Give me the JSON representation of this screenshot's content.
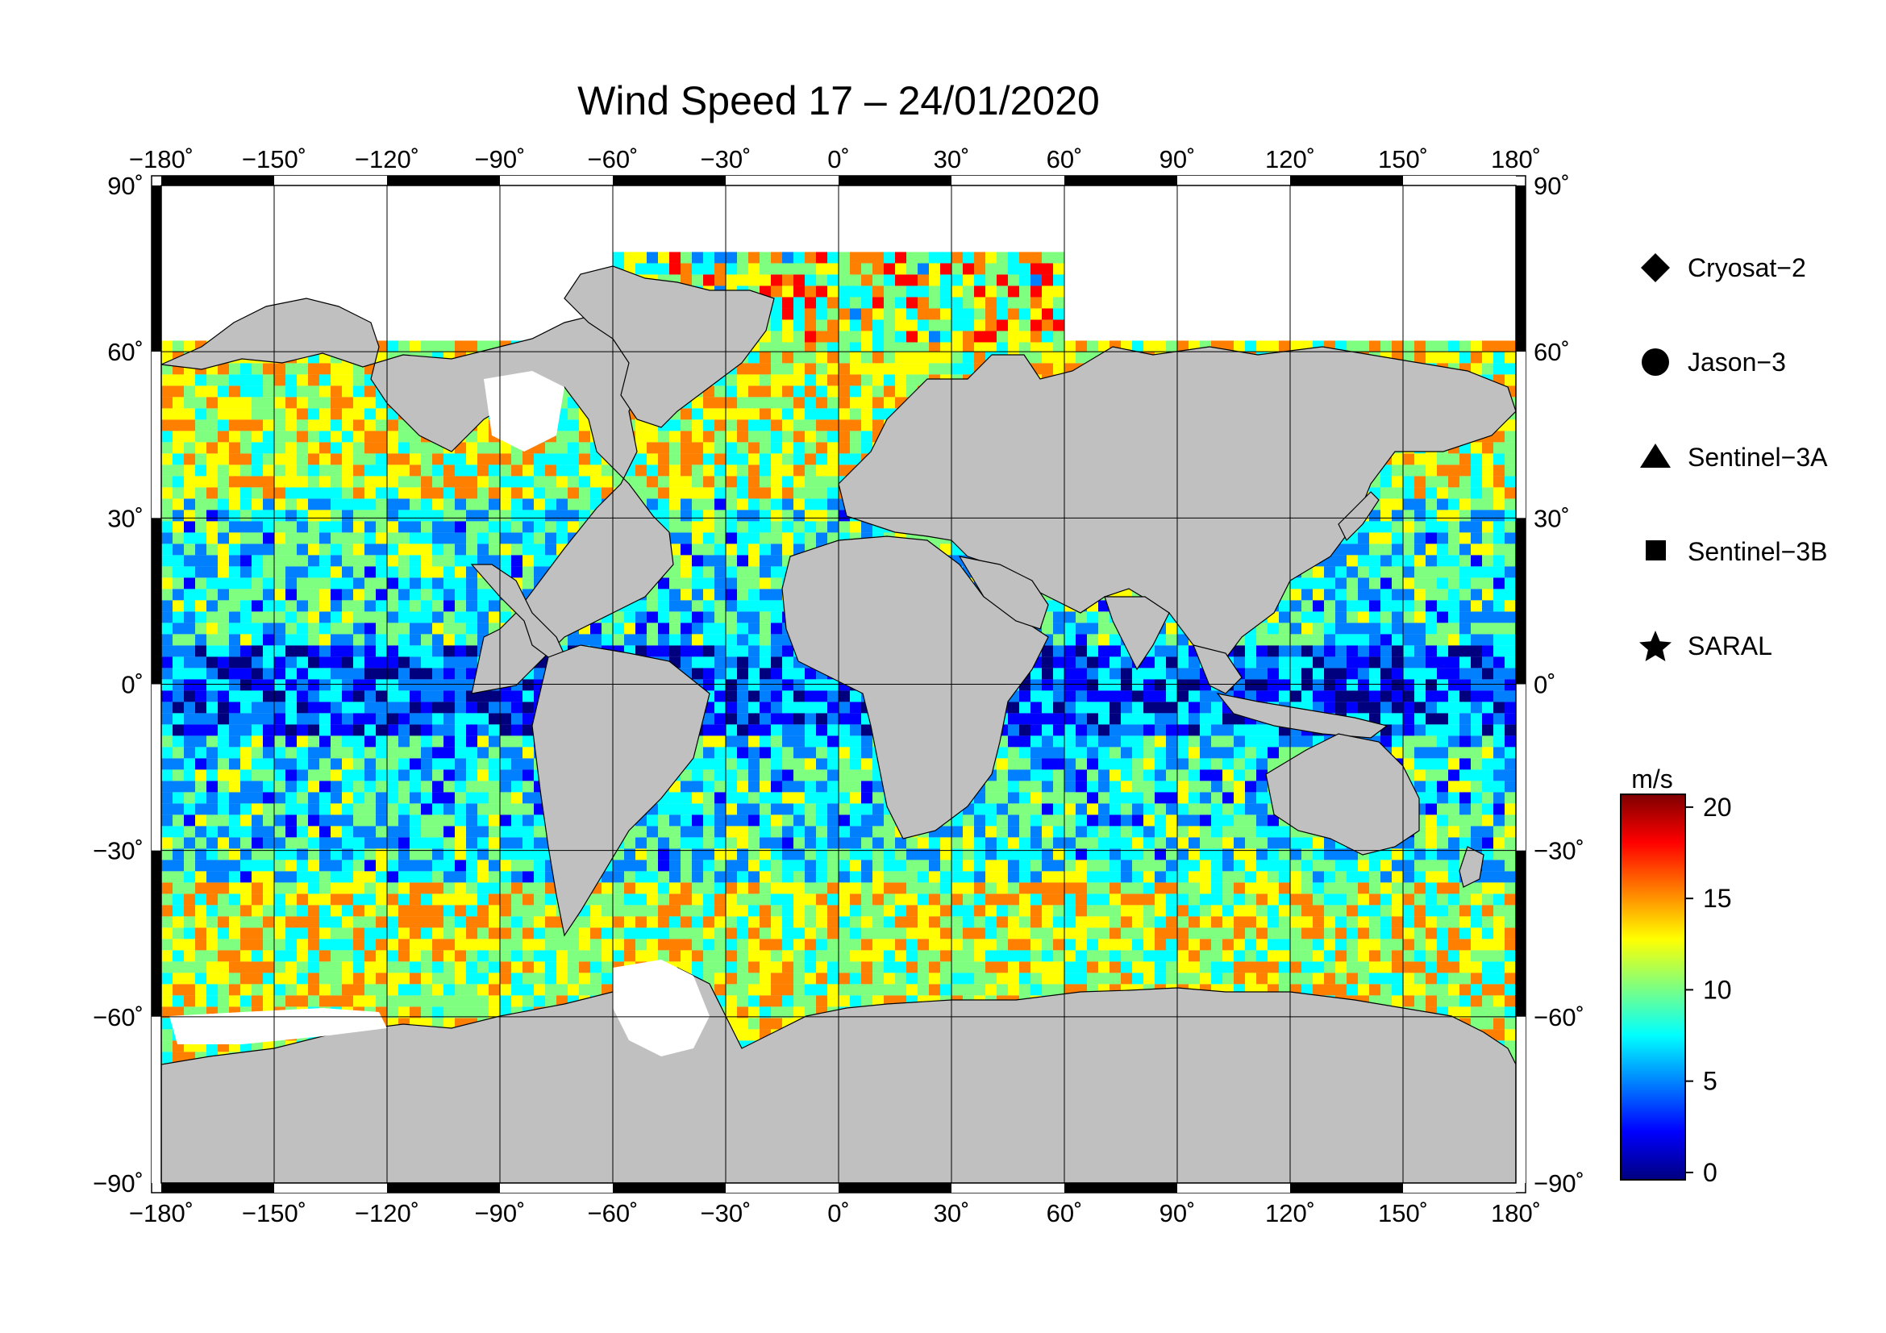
{
  "title": "Wind Speed 17 – 24/01/2020",
  "x_axis": {
    "ticks": [
      -180,
      -150,
      -120,
      -90,
      -60,
      -30,
      0,
      30,
      60,
      90,
      120,
      150,
      180
    ],
    "labels": [
      "−180˚",
      "−150˚",
      "−120˚",
      "−90˚",
      "−60˚",
      "−30˚",
      "0˚",
      "30˚",
      "60˚",
      "90˚",
      "120˚",
      "150˚",
      "180˚"
    ]
  },
  "y_axis": {
    "ticks": [
      90,
      60,
      30,
      0,
      -30,
      -60,
      -90
    ],
    "labels": [
      "90˚",
      "60˚",
      "30˚",
      "0˚",
      "−30˚",
      "−60˚",
      "−90˚"
    ]
  },
  "legend": {
    "items": [
      {
        "icon": "diamond-icon",
        "label": "Cryosat−2"
      },
      {
        "icon": "circle-icon",
        "label": "Jason−3"
      },
      {
        "icon": "triangle-icon",
        "label": "Sentinel−3A"
      },
      {
        "icon": "square-icon",
        "label": "Sentinel−3B"
      },
      {
        "icon": "star-icon",
        "label": "SARAL"
      }
    ]
  },
  "colorbar": {
    "unit": "m/s",
    "ticks": [
      0,
      5,
      10,
      15,
      20
    ],
    "labels": [
      "0",
      "5",
      "10",
      "15",
      "20"
    ],
    "range": [
      -0.4,
      20.7
    ],
    "colors": [
      "#00007f",
      "#0000ff",
      "#007fff",
      "#00ffff",
      "#7fff7f",
      "#ffff00",
      "#ff7f00",
      "#ff0000",
      "#7f0000"
    ]
  },
  "colors": {
    "land": "#c0c0c0",
    "nodata": "#ffffff"
  }
}
